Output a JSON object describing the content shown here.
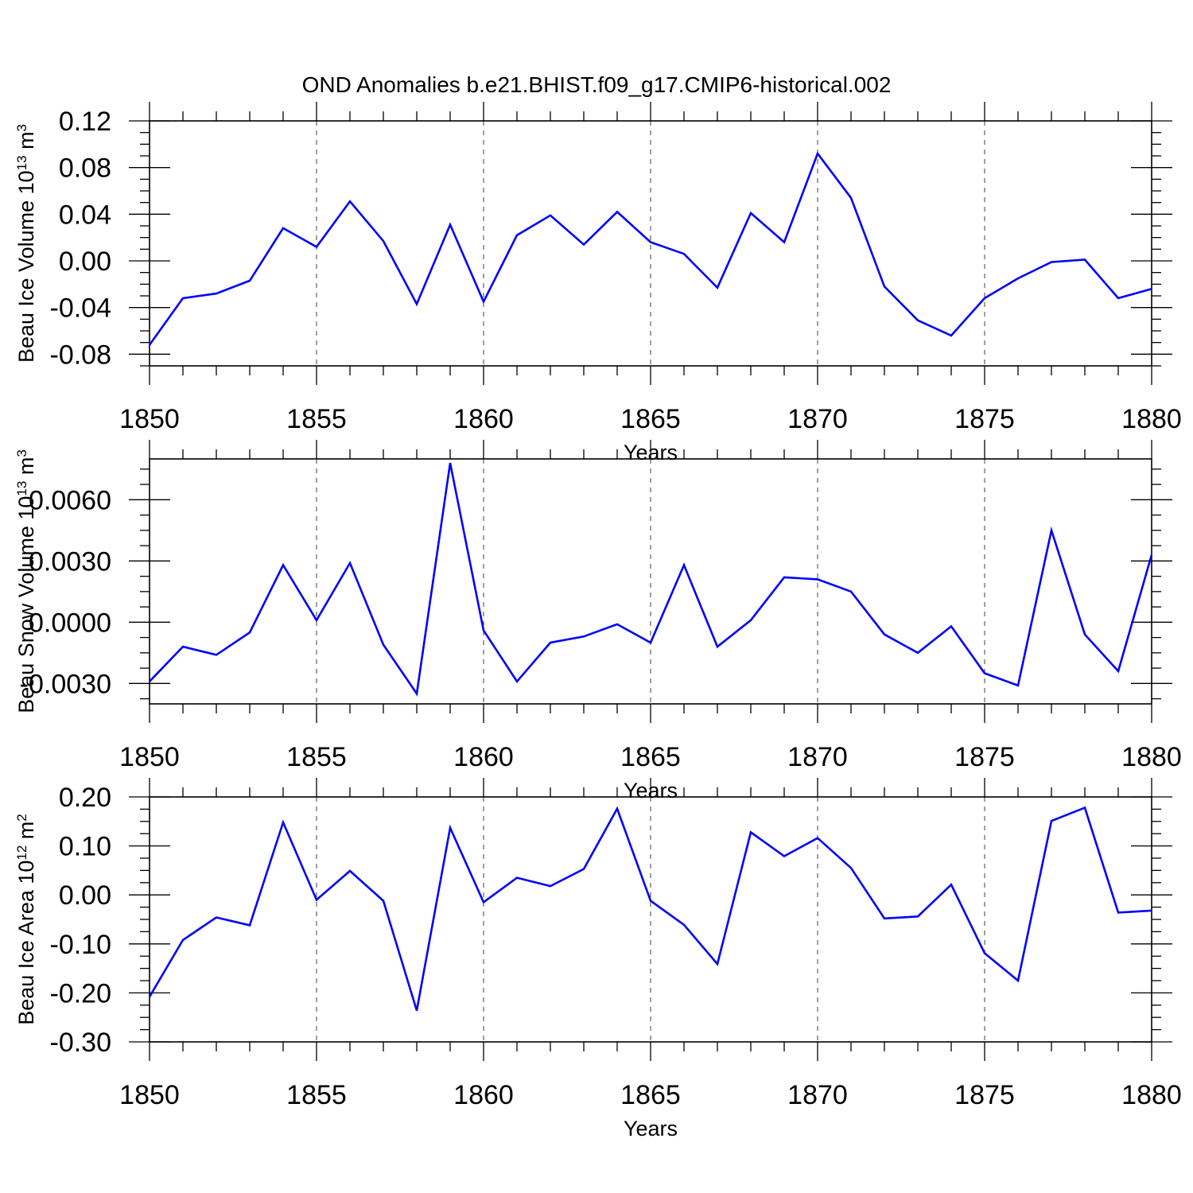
{
  "title": "OND Anomalies b.e21.BHIST.f09_g17.CMIP6-historical.002",
  "colors": {
    "series": "#0000ff",
    "axes": "#000000",
    "background": "#ffffff"
  },
  "chart_data": [
    {
      "type": "line",
      "title": "OND Anomalies b.e21.BHIST.f09_g17.CMIP6-historical.002",
      "xlabel": "Years",
      "ylabel": {
        "main": "Beau Ice Volume 10",
        "sup": "13",
        "unit": " m",
        "unit_sup": "3"
      },
      "xlim": [
        1850,
        1880
      ],
      "ylim": [
        -0.09,
        0.12
      ],
      "x_ticks": [
        1850,
        1855,
        1860,
        1865,
        1870,
        1875,
        1880
      ],
      "x_tick_labels": [
        "1850",
        "1855",
        "1860",
        "1865",
        "1870",
        "1875",
        "1880"
      ],
      "y_ticks": [
        -0.08,
        -0.04,
        0.0,
        0.04,
        0.08,
        0.12
      ],
      "y_tick_labels": [
        "-0.08",
        "-0.04",
        "0.00",
        "0.04",
        "0.08",
        "0.12"
      ],
      "grid": "vertical dashed at x major ticks",
      "x": [
        1850,
        1851,
        1852,
        1853,
        1854,
        1855,
        1856,
        1857,
        1858,
        1859,
        1860,
        1861,
        1862,
        1863,
        1864,
        1865,
        1866,
        1867,
        1868,
        1869,
        1870,
        1871,
        1872,
        1873,
        1874,
        1875,
        1876,
        1877,
        1878,
        1879,
        1880
      ],
      "values": [
        -0.072,
        -0.032,
        -0.028,
        -0.017,
        0.028,
        0.012,
        0.051,
        0.017,
        -0.037,
        0.031,
        -0.035,
        0.022,
        0.039,
        0.014,
        0.042,
        0.016,
        0.006,
        -0.023,
        0.041,
        0.016,
        0.092,
        0.054,
        -0.022,
        -0.051,
        -0.064,
        -0.032,
        -0.015,
        -0.001,
        0.001,
        -0.032,
        -0.024
      ]
    },
    {
      "type": "line",
      "xlabel": "Years",
      "ylabel": {
        "main": "Beau Snow Volume 10",
        "sup": "13",
        "unit": " m",
        "unit_sup": "3"
      },
      "xlim": [
        1850,
        1880
      ],
      "ylim": [
        -0.004,
        0.008
      ],
      "x_ticks": [
        1850,
        1855,
        1860,
        1865,
        1870,
        1875,
        1880
      ],
      "x_tick_labels": [
        "1850",
        "1855",
        "1860",
        "1865",
        "1870",
        "1875",
        "1880"
      ],
      "y_ticks": [
        -0.003,
        0.0,
        0.003,
        0.006
      ],
      "y_tick_labels": [
        "-0.0030",
        "0.0000",
        "0.0030",
        "0.0060"
      ],
      "grid": "vertical dashed at x major ticks",
      "x": [
        1850,
        1851,
        1852,
        1853,
        1854,
        1855,
        1856,
        1857,
        1858,
        1859,
        1860,
        1861,
        1862,
        1863,
        1864,
        1865,
        1866,
        1867,
        1868,
        1869,
        1870,
        1871,
        1872,
        1873,
        1874,
        1875,
        1876,
        1877,
        1878,
        1879,
        1880
      ],
      "values": [
        -0.0029,
        -0.0012,
        -0.0016,
        -0.0005,
        0.0028,
        0.0001,
        0.0029,
        -0.0011,
        -0.0035,
        0.0078,
        -0.0004,
        -0.0029,
        -0.001,
        -0.0007,
        -0.0001,
        -0.001,
        0.0028,
        -0.0012,
        0.0001,
        0.0022,
        0.0021,
        0.0015,
        -0.0006,
        -0.0015,
        -0.0002,
        -0.0025,
        -0.0031,
        0.0045,
        -0.0006,
        -0.0024,
        0.0033
      ]
    },
    {
      "type": "line",
      "xlabel": "Years",
      "ylabel": {
        "main": "Beau Ice Area 10",
        "sup": "12",
        "unit": " m",
        "unit_sup": "2"
      },
      "xlim": [
        1850,
        1880
      ],
      "ylim": [
        -0.3,
        0.2
      ],
      "x_ticks": [
        1850,
        1855,
        1860,
        1865,
        1870,
        1875,
        1880
      ],
      "x_tick_labels": [
        "1850",
        "1855",
        "1860",
        "1865",
        "1870",
        "1875",
        "1880"
      ],
      "y_ticks": [
        -0.3,
        -0.2,
        -0.1,
        0.0,
        0.1,
        0.2
      ],
      "y_tick_labels": [
        "-0.30",
        "-0.20",
        "-0.10",
        "0.00",
        "0.10",
        "0.20"
      ],
      "grid": "vertical dashed at x major ticks",
      "x": [
        1850,
        1851,
        1852,
        1853,
        1854,
        1855,
        1856,
        1857,
        1858,
        1859,
        1860,
        1861,
        1862,
        1863,
        1864,
        1865,
        1866,
        1867,
        1868,
        1869,
        1870,
        1871,
        1872,
        1873,
        1874,
        1875,
        1876,
        1877,
        1878,
        1879,
        1880
      ],
      "values": [
        -0.208,
        -0.092,
        -0.046,
        -0.062,
        0.148,
        -0.01,
        0.049,
        -0.012,
        -0.236,
        0.137,
        -0.015,
        0.035,
        0.018,
        0.053,
        0.176,
        -0.012,
        -0.061,
        -0.141,
        0.128,
        0.079,
        0.116,
        0.055,
        -0.048,
        -0.044,
        0.021,
        -0.119,
        -0.175,
        0.151,
        0.178,
        -0.036,
        -0.032
      ]
    }
  ]
}
